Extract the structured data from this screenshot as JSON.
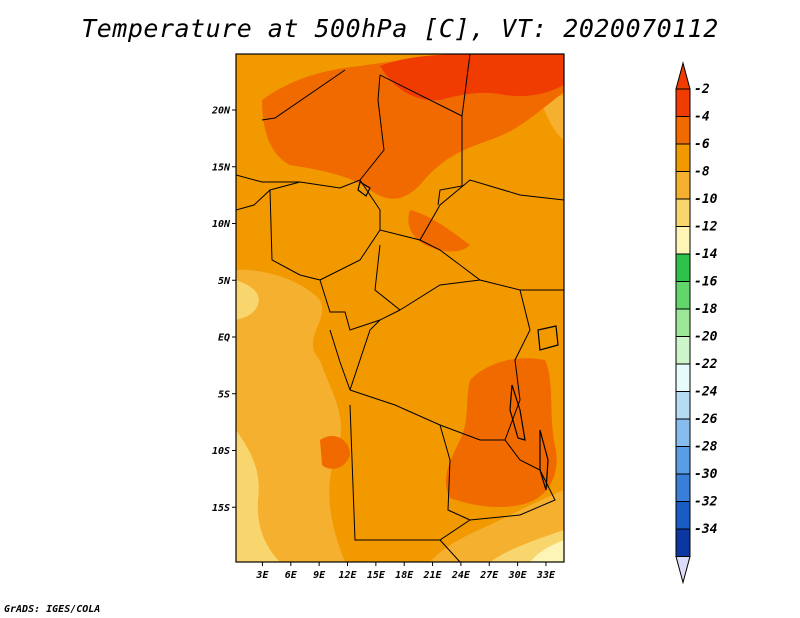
{
  "title": "Temperature at 500hPa [C], VT: 2020070112",
  "credit": "GrADS: IGES/COLA",
  "map": {
    "lat_labels": [
      "20N",
      "15N",
      "10N",
      "5N",
      "EQ",
      "5S",
      "10S",
      "15S"
    ],
    "lon_labels": [
      "3E",
      "6E",
      "9E",
      "12E",
      "15E",
      "18E",
      "21E",
      "24E",
      "27E",
      "30E",
      "33E"
    ],
    "lat_values": [
      20,
      15,
      10,
      5,
      0,
      -5,
      -10,
      -15
    ],
    "lon_values": [
      3,
      6,
      9,
      12,
      15,
      18,
      21,
      24,
      27,
      30,
      33
    ]
  },
  "colorbar": {
    "levels": [
      {
        "label": "-2",
        "color": "#f03c00"
      },
      {
        "label": "-4",
        "color": "#f06a00"
      },
      {
        "label": "-6",
        "color": "#f29900"
      },
      {
        "label": "-8",
        "color": "#f5b02f"
      },
      {
        "label": "-10",
        "color": "#f9d56e"
      },
      {
        "label": "-12",
        "color": "#fdf5b5"
      },
      {
        "label": "-14",
        "color": "#2ec24a"
      },
      {
        "label": "-16",
        "color": "#62d66a"
      },
      {
        "label": "-18",
        "color": "#9ce898"
      },
      {
        "label": "-20",
        "color": "#cef5ca"
      },
      {
        "label": "-22",
        "color": "#e6fbfb"
      },
      {
        "label": "-24",
        "color": "#b6dcf4"
      },
      {
        "label": "-26",
        "color": "#86bdee"
      },
      {
        "label": "-28",
        "color": "#5a9de6"
      },
      {
        "label": "-30",
        "color": "#3a7ed8"
      },
      {
        "label": "-32",
        "color": "#1a5cc4"
      },
      {
        "label": "-34",
        "color": "#0d37a0"
      }
    ],
    "top_color": "#f03c00",
    "bottom_color": "#050d5a",
    "under_color": "#dcdcf8"
  },
  "palette": {
    "red": "#f03c00",
    "red_orange": "#f06a00",
    "orange": "#f29900",
    "light_orange": "#f5b02f",
    "yellow": "#f9d56e",
    "pale": "#fdf5b5"
  }
}
